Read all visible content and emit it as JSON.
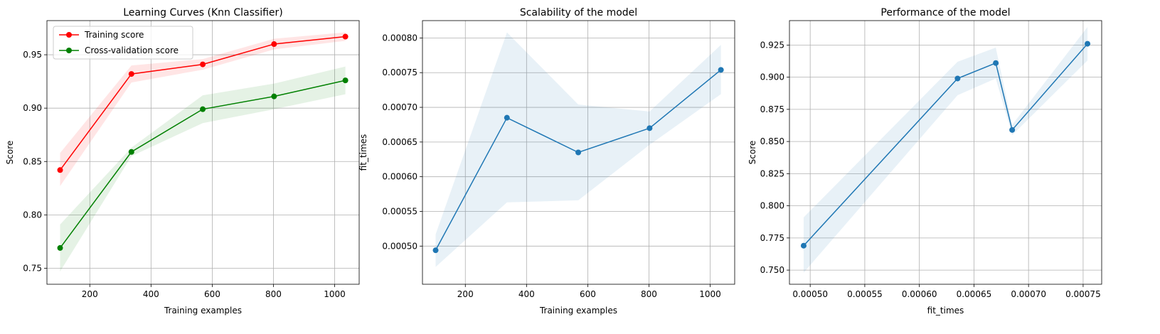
{
  "chart_data": [
    {
      "type": "line",
      "title": "Learning Curves (Knn Classifier)",
      "xlabel": "Training examples",
      "ylabel": "Score",
      "xlim": [
        60,
        1080
      ],
      "ylim": [
        0.735,
        0.982
      ],
      "xticks": [
        200,
        400,
        600,
        800,
        1000
      ],
      "xtick_labels": [
        "200",
        "400",
        "600",
        "800",
        "1000"
      ],
      "yticks": [
        0.75,
        0.8,
        0.85,
        0.9,
        0.95
      ],
      "ytick_labels": [
        "0.75",
        "0.80",
        "0.85",
        "0.90",
        "0.95"
      ],
      "grid": true,
      "legend_position": "upper-left",
      "x": [
        103,
        336,
        569,
        802,
        1035
      ],
      "series": [
        {
          "name": "Training score",
          "color": "#ff0000",
          "values": [
            0.842,
            0.932,
            0.941,
            0.96,
            0.967
          ],
          "band_low": [
            0.827,
            0.924,
            0.936,
            0.955,
            0.963
          ],
          "band_high": [
            0.858,
            0.94,
            0.946,
            0.965,
            0.971
          ]
        },
        {
          "name": "Cross-validation score",
          "color": "#008000",
          "values": [
            0.769,
            0.859,
            0.899,
            0.911,
            0.926
          ],
          "band_low": [
            0.747,
            0.855,
            0.886,
            0.899,
            0.913
          ],
          "band_high": [
            0.791,
            0.863,
            0.912,
            0.923,
            0.939
          ]
        }
      ]
    },
    {
      "type": "line",
      "title": "Scalability of the model",
      "xlabel": "Training examples",
      "ylabel": "fit_times",
      "xlim": [
        60,
        1080
      ],
      "ylim": [
        0.000445,
        0.000825
      ],
      "xticks": [
        200,
        400,
        600,
        800,
        1000
      ],
      "xtick_labels": [
        "200",
        "400",
        "600",
        "800",
        "1000"
      ],
      "yticks": [
        0.0005,
        0.00055,
        0.0006,
        0.00065,
        0.0007,
        0.00075,
        0.0008
      ],
      "ytick_labels": [
        "0.00050",
        "0.00055",
        "0.00060",
        "0.00065",
        "0.00070",
        "0.00075",
        "0.00080"
      ],
      "grid": true,
      "x": [
        103,
        336,
        569,
        802,
        1035
      ],
      "series": [
        {
          "color": "#1f77b4",
          "values": [
            0.000494,
            0.000685,
            0.000635,
            0.00067,
            0.000754
          ],
          "band_low": [
            0.00047,
            0.000563,
            0.000566,
            0.000646,
            0.000719
          ],
          "band_high": [
            0.000517,
            0.000808,
            0.000704,
            0.000694,
            0.00079
          ]
        }
      ]
    },
    {
      "type": "line",
      "title": "Performance of the model",
      "xlabel": "fit_times",
      "ylabel": "Score",
      "xlim": [
        0.000481,
        0.000767
      ],
      "ylim": [
        0.739,
        0.944
      ],
      "xticks": [
        0.0005,
        0.00055,
        0.0006,
        0.00065,
        0.0007,
        0.00075
      ],
      "xtick_labels": [
        "0.00050",
        "0.00055",
        "0.00060",
        "0.00065",
        "0.00070",
        "0.00075"
      ],
      "yticks": [
        0.75,
        0.775,
        0.8,
        0.825,
        0.85,
        0.875,
        0.9,
        0.925
      ],
      "ytick_labels": [
        "0.750",
        "0.775",
        "0.800",
        "0.825",
        "0.850",
        "0.875",
        "0.900",
        "0.925"
      ],
      "grid": true,
      "x": [
        0.000494,
        0.000635,
        0.00067,
        0.000685,
        0.000754
      ],
      "series": [
        {
          "color": "#1f77b4",
          "values": [
            0.769,
            0.899,
            0.911,
            0.859,
            0.926
          ],
          "band_low": [
            0.748,
            0.886,
            0.899,
            0.855,
            0.913
          ],
          "band_high": [
            0.791,
            0.912,
            0.923,
            0.863,
            0.939
          ]
        }
      ]
    }
  ]
}
